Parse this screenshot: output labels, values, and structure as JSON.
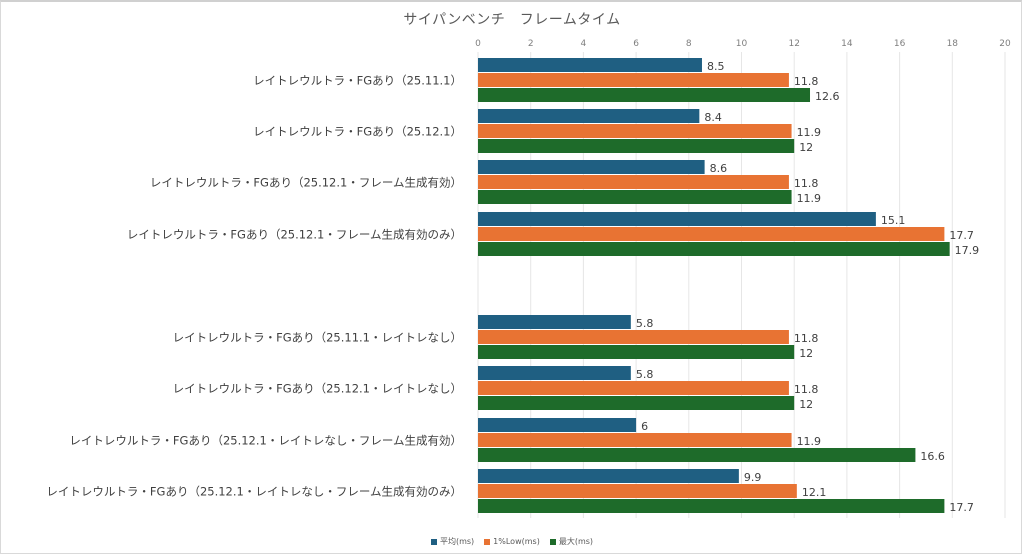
{
  "chart_data": {
    "type": "bar",
    "orientation": "horizontal",
    "title": "サイパンベンチ　フレームタイム",
    "xlabel": "",
    "ylabel": "",
    "xlim": [
      0,
      20
    ],
    "x_ticks": [
      "0",
      "2",
      "4",
      "6",
      "8",
      "10",
      "12",
      "14",
      "16",
      "18",
      "20"
    ],
    "x_axis_position": "top",
    "grid": true,
    "legend_position": "bottom",
    "categories": [
      "レイトレウルトラ・FGあり（25.11.1）",
      "レイトレウルトラ・FGあり（25.12.1）",
      "レイトレウルトラ・FGあり（25.12.1・フレーム生成有効）",
      "レイトレウルトラ・FGあり（25.12.1・フレーム生成有効のみ）",
      "",
      "レイトレウルトラ・FGあり（25.11.1・レイトレなし）",
      "レイトレウルトラ・FGあり（25.12.1・レイトレなし）",
      "レイトレウルトラ・FGあり（25.12.1・レイトレなし・フレーム生成有効）",
      "レイトレウルトラ・FGあり（25.12.1・レイトレなし・フレーム生成有効のみ）"
    ],
    "series": [
      {
        "name": "平均(ms)",
        "color": "#1f5f82",
        "values": [
          8.5,
          8.4,
          8.6,
          15.1,
          null,
          5.8,
          5.8,
          6,
          9.9
        ]
      },
      {
        "name": "1%Low(ms)",
        "color": "#e87333",
        "values": [
          11.8,
          11.9,
          11.8,
          17.7,
          null,
          11.8,
          11.8,
          11.9,
          12.1
        ]
      },
      {
        "name": "最大(ms)",
        "color": "#1e6b2a",
        "values": [
          12.6,
          12,
          11.9,
          17.9,
          null,
          12,
          12,
          16.6,
          17.7
        ]
      }
    ]
  }
}
